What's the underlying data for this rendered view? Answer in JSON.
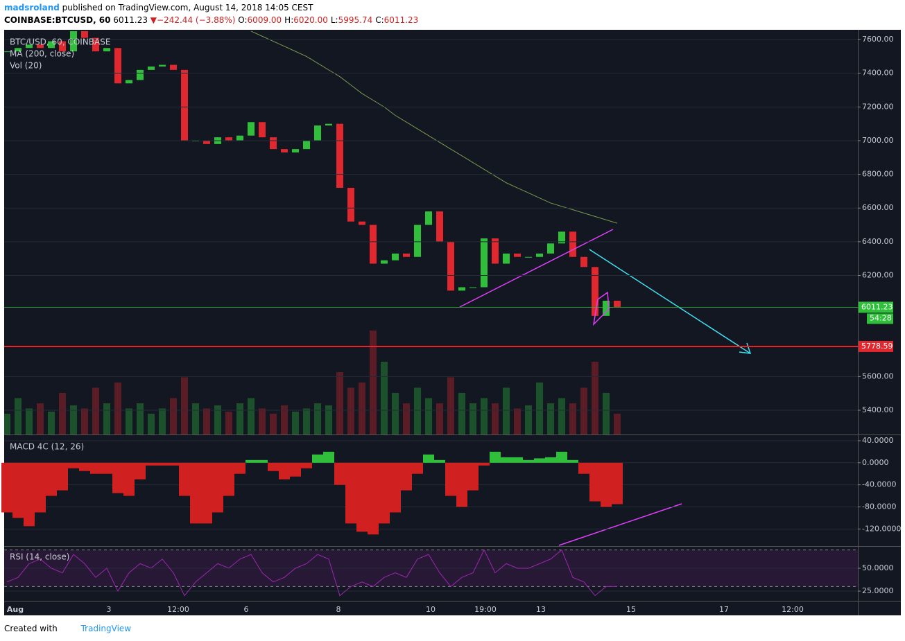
{
  "header": {
    "author": "madsroland",
    "published": "published on TradingView.com, August 14, 2018 14:05 CEST",
    "symbol": "COINBASE:BTCUSD, 60",
    "last": "6011.23",
    "arrow": "▼",
    "change": "−242.44 (−3.88%)",
    "ohlc": [
      {
        "label": "O:",
        "value": "6009.00"
      },
      {
        "label": "H:",
        "value": "6020.00"
      },
      {
        "label": "L:",
        "value": "5995.74"
      },
      {
        "label": "C:",
        "value": "6011.23"
      }
    ]
  },
  "footer": {
    "created": "Created with",
    "brand": "TradingView"
  },
  "chart_data": [
    {
      "type": "candlestick",
      "legend": [
        "BTC/USD, 60, COINBASE",
        "MA (200, close)",
        "Vol (20)"
      ],
      "up_color": "#2fbf3b",
      "down_color": "#e0282e",
      "ma_color": "#7b9a4e",
      "close": [
        7530,
        7550,
        7570,
        7550,
        7590,
        7530,
        7650,
        7610,
        7530,
        7550,
        7340,
        7360,
        7420,
        7440,
        7450,
        7420,
        7000,
        7000,
        6980,
        7020,
        7000,
        7030,
        7110,
        7020,
        6950,
        6930,
        6950,
        7000,
        7090,
        7100,
        6720,
        6520,
        6500,
        6270,
        6290,
        6330,
        6310,
        6500,
        6580,
        6400,
        6110,
        6130,
        6130,
        6420,
        6270,
        6330,
        6310,
        6310,
        6330,
        6390,
        6460,
        6310,
        6250,
        5960,
        6050,
        6011.23
      ],
      "ma": [
        null,
        null,
        null,
        null,
        null,
        null,
        null,
        null,
        null,
        null,
        null,
        null,
        null,
        null,
        null,
        null,
        null,
        null,
        null,
        null,
        null,
        null,
        7650,
        7620,
        7590,
        7560,
        7530,
        7500,
        7460,
        7420,
        7380,
        7330,
        7280,
        7240,
        7200,
        7150,
        7110,
        7070,
        7030,
        6990,
        6950,
        6910,
        6870,
        6830,
        6790,
        6750,
        6720,
        6690,
        6660,
        6630,
        6610,
        6590,
        6570,
        6550,
        6530,
        6510
      ],
      "volume": [
        20,
        35,
        25,
        30,
        22,
        40,
        28,
        25,
        45,
        30,
        50,
        25,
        30,
        20,
        25,
        35,
        55,
        30,
        25,
        28,
        22,
        30,
        35,
        25,
        20,
        28,
        22,
        25,
        30,
        28,
        60,
        45,
        50,
        100,
        70,
        40,
        30,
        45,
        35,
        30,
        55,
        40,
        30,
        35,
        30,
        45,
        25,
        28,
        50,
        30,
        35,
        30,
        45,
        70,
        40,
        20
      ],
      "ylim": [
        5256,
        7658
      ],
      "yticks": [
        {
          "value": 7600,
          "label": "7600.00"
        },
        {
          "value": 7400,
          "label": "7400.00"
        },
        {
          "value": 7200,
          "label": "7200.00"
        },
        {
          "value": 7000,
          "label": "7000.00"
        },
        {
          "value": 6800,
          "label": "6800.00"
        },
        {
          "value": 6600,
          "label": "6600.00"
        },
        {
          "value": 6400,
          "label": "6400.00"
        },
        {
          "value": 6200,
          "label": "6200.00"
        },
        {
          "value": 5600,
          "label": "5600.00"
        },
        {
          "value": 5400,
          "label": "5400.00"
        }
      ],
      "last_price": {
        "value": 6011.23,
        "label": "6011.23"
      },
      "countdown": "54:28",
      "target": {
        "value": 5778.59,
        "label": "5778.59"
      },
      "xticks": [
        "Aug",
        "3",
        "12:00",
        "6",
        "8",
        "10",
        "19:00",
        "13",
        "15",
        "17",
        "12:00"
      ]
    },
    {
      "type": "bar",
      "legend": "MACD 4C (12, 26)",
      "up_color": "#2fbf3b",
      "down_color": "#d0201f",
      "values": [
        -90,
        -100,
        -115,
        -90,
        -60,
        -50,
        -10,
        -15,
        -20,
        -20,
        -55,
        -60,
        -30,
        -5,
        -5,
        -5,
        -60,
        -110,
        -110,
        -90,
        -60,
        -20,
        5,
        5,
        -15,
        -30,
        -25,
        -10,
        15,
        20,
        -40,
        -110,
        -125,
        -130,
        -110,
        -90,
        -50,
        -20,
        15,
        5,
        -60,
        -80,
        -50,
        -5,
        20,
        10,
        10,
        5,
        8,
        10,
        20,
        5,
        -20,
        -70,
        -80,
        -75
      ],
      "ylim": [
        -151,
        50
      ],
      "yticks": [
        {
          "value": 40,
          "label": "40.0000"
        },
        {
          "value": 0,
          "label": "0.0000"
        },
        {
          "value": -40,
          "label": "-40.0000"
        },
        {
          "value": -80,
          "label": "-80.0000"
        },
        {
          "value": -120,
          "label": "-120.0000"
        }
      ]
    },
    {
      "type": "line",
      "legend": "RSI (14, close)",
      "color": "#9c27b0",
      "values": [
        35,
        40,
        55,
        60,
        50,
        45,
        65,
        55,
        40,
        50,
        25,
        45,
        55,
        50,
        60,
        45,
        20,
        35,
        45,
        55,
        50,
        60,
        65,
        45,
        35,
        40,
        50,
        55,
        65,
        60,
        20,
        30,
        35,
        30,
        40,
        45,
        40,
        60,
        65,
        45,
        30,
        40,
        45,
        70,
        45,
        55,
        50,
        50,
        55,
        60,
        70,
        40,
        35,
        20,
        30,
        30
      ],
      "ylim": [
        14.4,
        72.7
      ],
      "bands": [
        30,
        70
      ],
      "yticks": [
        {
          "value": 50,
          "label": "50.0000"
        },
        {
          "value": 25,
          "label": "25.0000"
        }
      ]
    }
  ]
}
